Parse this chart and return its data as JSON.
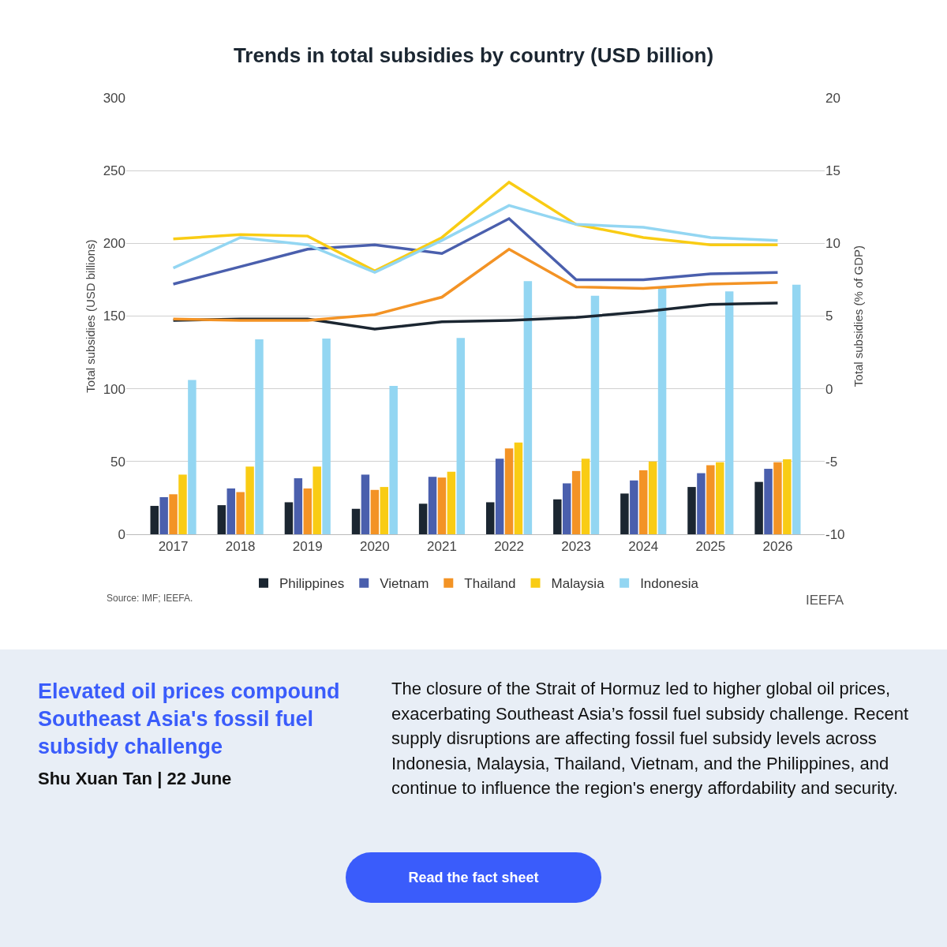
{
  "chart_data": {
    "type": "bar",
    "title": "Trends in total subsidies by country (USD billion)",
    "ylabel": "Total subsidies (USD billions)",
    "y2label": "Total subsidies (% of GDP)",
    "categories": [
      "2017",
      "2018",
      "2019",
      "2020",
      "2021",
      "2022",
      "2023",
      "2024",
      "2025",
      "2026"
    ],
    "ylim": [
      0,
      300
    ],
    "yticks": [
      0,
      50,
      100,
      150,
      200,
      250,
      300
    ],
    "y2lim": [
      -10,
      20
    ],
    "y2ticks": [
      -10,
      -5,
      0,
      5,
      10,
      15,
      20
    ],
    "grid": "y",
    "legend": "bottom",
    "series": [
      {
        "name": "Philippines",
        "color": "#1b2631",
        "values": [
          19.5,
          20,
          22,
          17.5,
          21,
          22,
          24,
          28,
          32.5,
          36
        ]
      },
      {
        "name": "Vietnam",
        "color": "#4a5fad",
        "values": [
          25.5,
          31.5,
          38.5,
          41,
          39.5,
          52,
          35,
          37,
          42,
          45
        ]
      },
      {
        "name": "Thailand",
        "color": "#f39325",
        "values": [
          27.5,
          29,
          31.5,
          30.5,
          39,
          59,
          43.5,
          44,
          47.5,
          49.5
        ]
      },
      {
        "name": "Malaysia",
        "color": "#f9cc14",
        "values": [
          41,
          46.5,
          46.5,
          32.5,
          43,
          63,
          52,
          50,
          49.5,
          51.5
        ]
      },
      {
        "name": "Indonesia",
        "color": "#93d6f2",
        "values": [
          106,
          134,
          134.5,
          102,
          135,
          174,
          164,
          169.5,
          167,
          171.5
        ]
      },
      {
        "type": "line",
        "axis": "y2",
        "color": "#1b2631",
        "values": [
          4.7,
          4.8,
          4.8,
          4.1,
          4.6,
          4.7,
          4.9,
          5.3,
          5.8,
          5.9
        ]
      },
      {
        "type": "line",
        "axis": "y2",
        "color": "#4a5fad",
        "values": [
          7.2,
          8.4,
          9.6,
          9.9,
          9.3,
          11.7,
          7.5,
          7.5,
          7.9,
          8.0
        ]
      },
      {
        "type": "line",
        "axis": "y2",
        "color": "#f39325",
        "values": [
          4.8,
          4.7,
          4.7,
          5.1,
          6.3,
          9.6,
          7.0,
          6.9,
          7.2,
          7.3
        ]
      },
      {
        "type": "line",
        "axis": "y2",
        "color": "#f9cc14",
        "values": [
          10.3,
          10.6,
          10.5,
          8.1,
          10.4,
          14.2,
          11.3,
          10.4,
          9.9,
          9.9
        ]
      },
      {
        "type": "line",
        "axis": "y2",
        "color": "#93d6f2",
        "values": [
          8.3,
          10.4,
          9.9,
          8.0,
          10.2,
          12.6,
          11.3,
          11.1,
          10.4,
          10.2
        ]
      }
    ],
    "annotations": [
      "Source: IMF; IEEFA.",
      "IEEFA",
      "Elevated oil prices compound Southeast Asia's fossil fuel subsidy challenge",
      "Shu Xuan Tan | 22 June",
      "The closure of the Strait of Hormuz led to higher global oil prices, exacerbating Southeast Asia’s fossil fuel subsidy challenge. Recent supply disruptions are affecting fossil fuel subsidy levels across Indonesia, Malaysia, Thailand, Vietnam, and the Philippines, and continue to influence the region's energy affordability and security.",
      "Read the fact sheet"
    ]
  }
}
